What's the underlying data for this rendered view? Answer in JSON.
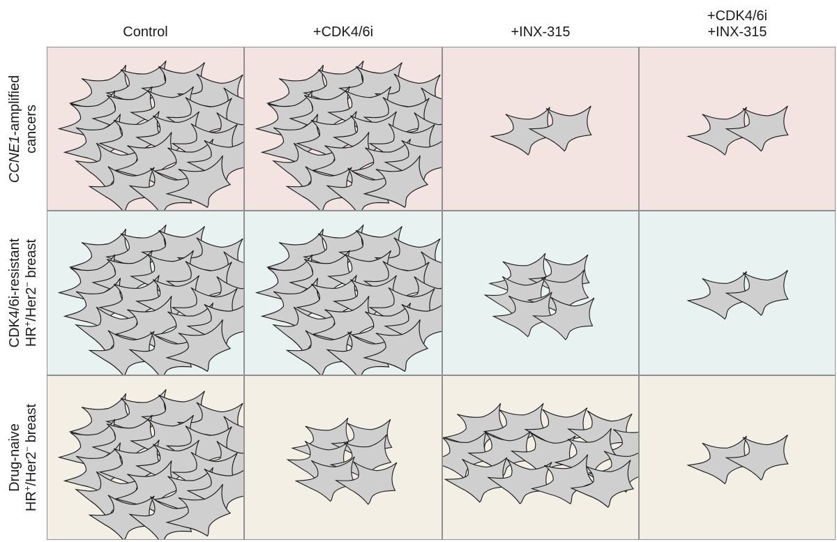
{
  "columns": [
    {
      "lines": [
        "Control"
      ]
    },
    {
      "lines": [
        "+CDK4/6i"
      ]
    },
    {
      "lines": [
        "+INX-315"
      ]
    },
    {
      "lines": [
        "+CDK4/6i",
        "+INX-315"
      ]
    }
  ],
  "rows": [
    {
      "key": "ccne1",
      "background": "#f3e4e1",
      "lines": [
        [
          {
            "t": "CCNE1",
            "italic": true
          },
          {
            "t": "-amplified"
          }
        ],
        [
          {
            "t": "cancers"
          }
        ]
      ],
      "cell_sizes": [
        "large",
        "large",
        "pair",
        "pair"
      ]
    },
    {
      "key": "resistant",
      "background": "#e8f3f1",
      "lines": [
        [
          {
            "t": "CDK4/6i-resistant"
          }
        ],
        [
          {
            "t": "HR"
          },
          {
            "t": "+",
            "sup": true
          },
          {
            "t": "/Her2"
          },
          {
            "t": "−",
            "sup": true
          },
          {
            "t": " breast"
          }
        ]
      ],
      "cell_sizes": [
        "large",
        "large",
        "small",
        "pair"
      ]
    },
    {
      "key": "naive",
      "background": "#f3efe4",
      "lines": [
        [
          {
            "t": "Drug-naive"
          }
        ],
        [
          {
            "t": "HR"
          },
          {
            "t": "+",
            "sup": true
          },
          {
            "t": "/Her2"
          },
          {
            "t": "−",
            "sup": true
          },
          {
            "t": " breast"
          }
        ]
      ],
      "cell_sizes": [
        "large",
        "small",
        "medium",
        "pair"
      ]
    }
  ],
  "colors": {
    "cell_fill": "#cfcfcf",
    "cell_stroke": "#1a1a1a",
    "grid_line": "#8f8f8f"
  }
}
